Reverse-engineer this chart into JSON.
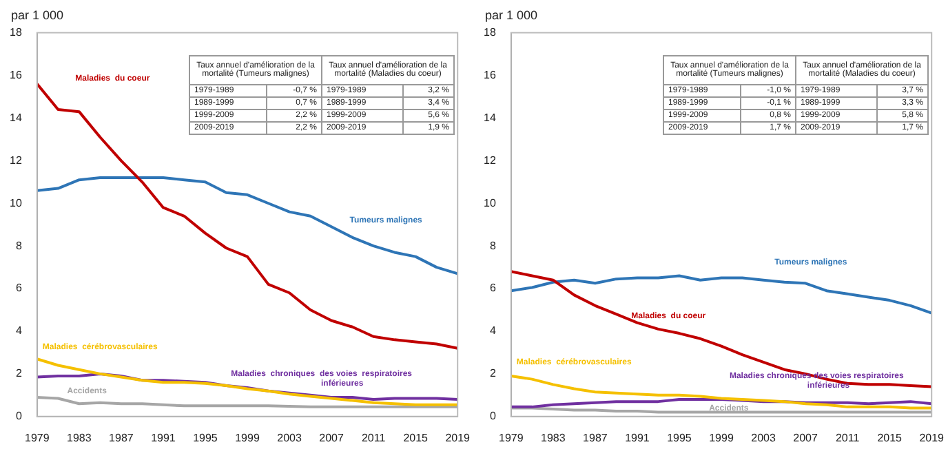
{
  "chart_data": [
    {
      "type": "line",
      "ylabel": "par 1 000",
      "x": [
        1979,
        1981,
        1983,
        1985,
        1987,
        1989,
        1991,
        1993,
        1995,
        1997,
        1999,
        2001,
        2003,
        2005,
        2007,
        2009,
        2011,
        2013,
        2015,
        2017,
        2019
      ],
      "xlim": [
        1979,
        2019
      ],
      "xticks": [
        1979,
        1983,
        1987,
        1991,
        1995,
        1999,
        2003,
        2007,
        2011,
        2015,
        2019
      ],
      "ylim": [
        0,
        18
      ],
      "yticks": [
        0,
        2,
        4,
        6,
        8,
        10,
        12,
        14,
        16,
        18
      ],
      "grid": false,
      "legend": false,
      "marker": "none",
      "line_style": "solid",
      "annotations": [
        "Taux annuel d'amélioration de la mortalité (Tumeurs malignes)",
        "Taux annuel d'amélioration de la mortalité (Maladies du coeur)",
        "1979-1989",
        "-0,7 %",
        "1979-1989",
        "3,2 %",
        "1989-1999",
        "0,7 %",
        "1989-1999",
        "3,4 %",
        "1999-2009",
        "2,2 %",
        "1999-2009",
        "5,6 %",
        "2009-2019",
        "2,2 %",
        "2009-2019",
        "1,9 %"
      ],
      "series": [
        {
          "name": "Maladies  du coeur",
          "color": "#c00000",
          "values": [
            15.6,
            14.4,
            14.3,
            13.1,
            12.0,
            11.0,
            9.8,
            9.4,
            8.6,
            7.9,
            7.5,
            6.2,
            5.8,
            5.0,
            4.5,
            4.2,
            3.75,
            3.6,
            3.5,
            3.4,
            3.2
          ]
        },
        {
          "name": "Tumeurs malignes",
          "color": "#2e75b6",
          "values": [
            10.6,
            10.7,
            11.1,
            11.2,
            11.2,
            11.2,
            11.2,
            11.1,
            11.0,
            10.5,
            10.4,
            10.0,
            9.6,
            9.4,
            8.9,
            8.4,
            8.0,
            7.7,
            7.5,
            7.0,
            6.7
          ]
        },
        {
          "name": "Maladies  cérébrovasculaires",
          "color": "#f5c000",
          "values": [
            2.7,
            2.4,
            2.2,
            2.0,
            1.85,
            1.7,
            1.6,
            1.6,
            1.55,
            1.45,
            1.3,
            1.2,
            1.05,
            0.95,
            0.85,
            0.75,
            0.65,
            0.6,
            0.55,
            0.55,
            0.55
          ]
        },
        {
          "name": "Maladies  chroniques  des voies  respiratoires  inférieures",
          "color": "#7030a0",
          "values": [
            1.85,
            1.9,
            1.9,
            2.0,
            1.9,
            1.7,
            1.7,
            1.65,
            1.6,
            1.45,
            1.35,
            1.2,
            1.1,
            1.0,
            0.9,
            0.9,
            0.8,
            0.85,
            0.85,
            0.85,
            0.8
          ]
        },
        {
          "name": "Accidents",
          "color": "#a6a6a6",
          "values": [
            0.9,
            0.85,
            0.6,
            0.65,
            0.6,
            0.6,
            0.55,
            0.5,
            0.5,
            0.5,
            0.5,
            0.5,
            0.48,
            0.45,
            0.45,
            0.45,
            0.45,
            0.45,
            0.45,
            0.45,
            0.45
          ]
        }
      ]
    },
    {
      "type": "line",
      "ylabel": "par 1 000",
      "x": [
        1979,
        1981,
        1983,
        1985,
        1987,
        1989,
        1991,
        1993,
        1995,
        1997,
        1999,
        2001,
        2003,
        2005,
        2007,
        2009,
        2011,
        2013,
        2015,
        2017,
        2019
      ],
      "xlim": [
        1979,
        2019
      ],
      "xticks": [
        1979,
        1983,
        1987,
        1991,
        1995,
        1999,
        2003,
        2007,
        2011,
        2015,
        2019
      ],
      "ylim": [
        0,
        18
      ],
      "yticks": [
        0,
        2,
        4,
        6,
        8,
        10,
        12,
        14,
        16,
        18
      ],
      "grid": false,
      "legend": false,
      "marker": "none",
      "line_style": "solid",
      "annotations": [
        "Taux annuel d'amélioration de la mortalité (Tumeurs malignes)",
        "Taux annuel d'amélioration de la mortalité (Maladies du coeur)",
        "1979-1989",
        "-1,0 %",
        "1979-1989",
        "3,7 %",
        "1989-1999",
        "-0,1 %",
        "1989-1999",
        "3,3 %",
        "1999-2009",
        "0,8 %",
        "1999-2009",
        "5,8 %",
        "2009-2019",
        "1,7 %",
        "2009-2019",
        "1,7 %"
      ],
      "series": [
        {
          "name": "Maladies  du coeur",
          "color": "#c00000",
          "values": [
            6.8,
            6.6,
            6.4,
            5.7,
            5.2,
            4.8,
            4.4,
            4.1,
            3.9,
            3.65,
            3.3,
            2.9,
            2.55,
            2.2,
            2.0,
            1.75,
            1.55,
            1.5,
            1.5,
            1.45,
            1.4
          ]
        },
        {
          "name": "Tumeurs malignes",
          "color": "#2e75b6",
          "values": [
            5.9,
            6.05,
            6.3,
            6.4,
            6.25,
            6.45,
            6.5,
            6.5,
            6.6,
            6.4,
            6.5,
            6.5,
            6.4,
            6.3,
            6.25,
            5.9,
            5.75,
            5.6,
            5.45,
            5.2,
            4.85
          ]
        },
        {
          "name": "Maladies  cérébrovasculaires",
          "color": "#f5c000",
          "values": [
            1.9,
            1.75,
            1.5,
            1.3,
            1.15,
            1.1,
            1.05,
            1.0,
            1.0,
            0.95,
            0.85,
            0.8,
            0.75,
            0.7,
            0.6,
            0.55,
            0.45,
            0.45,
            0.45,
            0.4,
            0.4
          ]
        },
        {
          "name": "Maladies chroniques des voies respiratoires inférieures",
          "color": "#7030a0",
          "values": [
            0.45,
            0.45,
            0.55,
            0.6,
            0.65,
            0.7,
            0.7,
            0.7,
            0.8,
            0.8,
            0.8,
            0.75,
            0.7,
            0.7,
            0.65,
            0.65,
            0.65,
            0.6,
            0.65,
            0.7,
            0.6
          ]
        },
        {
          "name": "Accidents",
          "color": "#a6a6a6",
          "values": [
            0.4,
            0.4,
            0.35,
            0.3,
            0.3,
            0.25,
            0.25,
            0.2,
            0.2,
            0.2,
            0.2,
            0.2,
            0.2,
            0.2,
            0.2,
            0.2,
            0.2,
            0.2,
            0.2,
            0.2,
            0.2
          ]
        }
      ]
    }
  ]
}
